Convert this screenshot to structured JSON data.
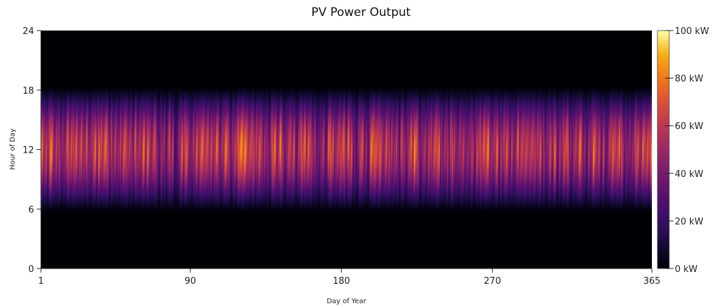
{
  "chart_data": {
    "type": "heatmap",
    "title": "PV Power Output",
    "xlabel": "Day of Year",
    "ylabel": "Hour of Day",
    "xlim": [
      1,
      365
    ],
    "ylim": [
      0,
      24
    ],
    "x_ticks": [
      1,
      90,
      180,
      270,
      365
    ],
    "y_ticks": [
      0,
      6,
      12,
      18,
      24
    ],
    "colorbar": {
      "min": 0,
      "max": 100,
      "unit": "kW",
      "ticks": [
        "0 kW",
        "20 kW",
        "40 kW",
        "60 kW",
        "80 kW",
        "100 kW"
      ],
      "colormap": "inferno"
    },
    "daylight_hours": [
      6,
      18
    ],
    "peak_hour": 12,
    "peak_value": 100
  }
}
